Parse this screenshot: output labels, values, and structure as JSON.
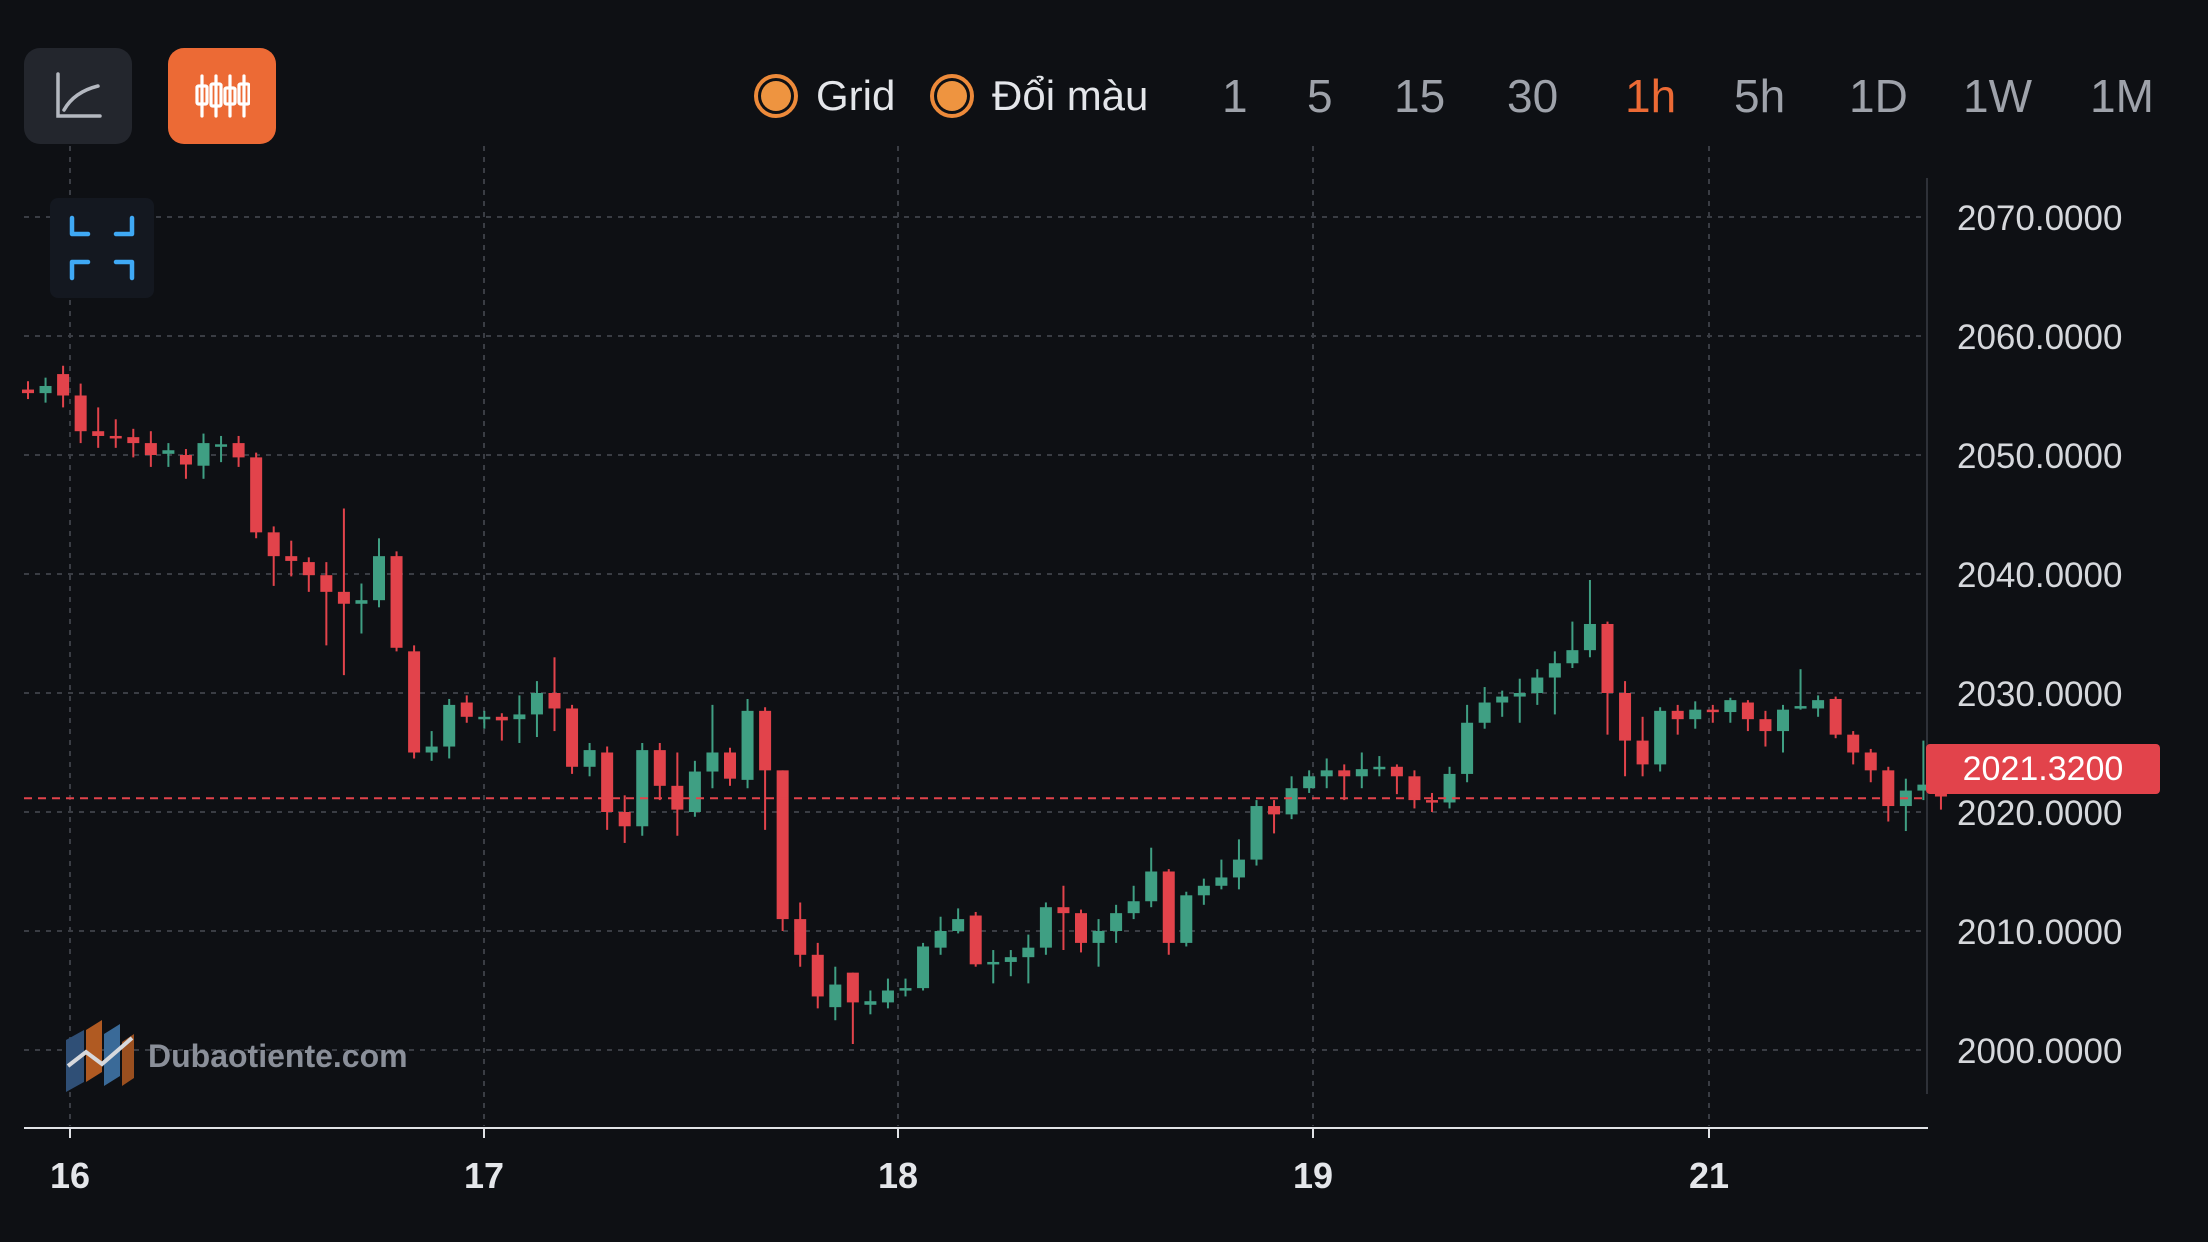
{
  "toolbar": {
    "toggles": [
      {
        "label": "Grid",
        "on": true
      },
      {
        "label": "Đổi màu",
        "on": true
      }
    ],
    "timeframes": [
      "1",
      "5",
      "15",
      "30",
      "1h",
      "5h",
      "1D",
      "1W",
      "1M"
    ],
    "active_timeframe": "1h",
    "chart_modes": [
      "line-chart-icon",
      "candlestick-icon"
    ],
    "active_mode": "candlestick-icon"
  },
  "watermark": {
    "text": "Dubaotiente.com"
  },
  "colors": {
    "background": "#0e1014",
    "up": "#3f9f83",
    "down": "#e2434b",
    "accent": "#ec6a35",
    "grid": "#3a3d44"
  },
  "chart_data": {
    "type": "candlestick",
    "grid": true,
    "ylim": [
      1994,
      2074
    ],
    "y_ticks": [
      "2070.0000",
      "2060.0000",
      "2050.0000",
      "2040.0000",
      "2030.0000",
      "2020.0000",
      "2010.0000",
      "2000.0000"
    ],
    "x_ticks": [
      "16",
      "17",
      "18",
      "19",
      "21"
    ],
    "current_price": "2021.3200",
    "candles": [
      [
        2055.5,
        2055.2,
        2056.2,
        2054.7
      ],
      [
        2055.2,
        2055.8,
        2056.5,
        2054.4
      ],
      [
        2056.8,
        2055.0,
        2057.5,
        2054.0
      ],
      [
        2055.0,
        2052.0,
        2056.0,
        2051.0
      ],
      [
        2052.0,
        2051.6,
        2054.0,
        2050.6
      ],
      [
        2051.6,
        2051.4,
        2053.0,
        2050.6
      ],
      [
        2051.5,
        2051.0,
        2052.2,
        2049.8
      ],
      [
        2051.0,
        2050.0,
        2052.0,
        2049.0
      ],
      [
        2050.1,
        2050.4,
        2051.0,
        2049.0
      ],
      [
        2050.0,
        2049.2,
        2050.5,
        2048.0
      ],
      [
        2049.1,
        2051.0,
        2051.8,
        2048.0
      ],
      [
        2050.8,
        2050.9,
        2051.6,
        2049.4
      ],
      [
        2051.0,
        2049.8,
        2051.6,
        2049.0
      ],
      [
        2049.8,
        2043.5,
        2050.2,
        2043.0
      ],
      [
        2043.5,
        2041.5,
        2044.0,
        2039.0
      ],
      [
        2041.5,
        2041.1,
        2042.8,
        2039.8
      ],
      [
        2041.0,
        2039.9,
        2041.4,
        2038.5
      ],
      [
        2039.9,
        2038.5,
        2041.0,
        2034.0
      ],
      [
        2038.5,
        2037.5,
        2045.5,
        2031.5
      ],
      [
        2037.5,
        2037.8,
        2039.2,
        2035.0
      ],
      [
        2037.8,
        2041.5,
        2043.0,
        2037.2
      ],
      [
        2041.5,
        2033.8,
        2041.9,
        2033.5
      ],
      [
        2033.5,
        2025.0,
        2034.0,
        2024.5
      ],
      [
        2025.0,
        2025.5,
        2026.8,
        2024.3
      ],
      [
        2025.5,
        2029.0,
        2029.5,
        2024.5
      ],
      [
        2029.2,
        2028.0,
        2029.8,
        2027.5
      ],
      [
        2028.0,
        2028.0,
        2028.5,
        2027.0
      ],
      [
        2028.0,
        2027.7,
        2028.3,
        2026.0
      ],
      [
        2027.8,
        2028.2,
        2029.8,
        2025.8
      ],
      [
        2028.2,
        2030.0,
        2031.0,
        2026.3
      ],
      [
        2030.0,
        2028.7,
        2033.0,
        2026.8
      ],
      [
        2028.7,
        2023.8,
        2029.0,
        2023.2
      ],
      [
        2023.8,
        2025.2,
        2025.8,
        2023.0
      ],
      [
        2025.0,
        2020.0,
        2025.5,
        2018.5
      ],
      [
        2020.0,
        2018.8,
        2021.4,
        2017.4
      ],
      [
        2018.8,
        2025.2,
        2025.8,
        2018.0
      ],
      [
        2025.2,
        2022.2,
        2025.8,
        2021.0
      ],
      [
        2022.2,
        2020.2,
        2025.0,
        2018.0
      ],
      [
        2020.0,
        2023.4,
        2024.3,
        2019.6
      ],
      [
        2023.4,
        2025.0,
        2029.0,
        2022.0
      ],
      [
        2025.0,
        2022.8,
        2025.4,
        2022.2
      ],
      [
        2022.7,
        2028.5,
        2029.5,
        2022.0
      ],
      [
        2028.5,
        2023.5,
        2028.8,
        2018.5
      ],
      [
        2023.5,
        2011.0,
        2023.5,
        2010.0
      ],
      [
        2011.0,
        2008.0,
        2012.4,
        2007.0
      ],
      [
        2008.0,
        2004.5,
        2009.0,
        2003.5
      ],
      [
        2003.6,
        2005.5,
        2007.0,
        2002.5
      ],
      [
        2006.5,
        2004.0,
        2006.5,
        2000.5
      ],
      [
        2003.8,
        2004.1,
        2005.0,
        2003.0
      ],
      [
        2004.0,
        2005.0,
        2006.0,
        2003.5
      ],
      [
        2005.0,
        2005.2,
        2006.0,
        2004.5
      ],
      [
        2005.2,
        2008.7,
        2009.0,
        2005.0
      ],
      [
        2008.6,
        2010.0,
        2011.2,
        2008.0
      ],
      [
        2010.0,
        2011.0,
        2011.9,
        2009.8
      ],
      [
        2011.3,
        2007.2,
        2011.6,
        2007.0
      ],
      [
        2007.2,
        2007.4,
        2008.4,
        2005.6
      ],
      [
        2007.4,
        2007.8,
        2008.4,
        2006.2
      ],
      [
        2007.8,
        2008.6,
        2009.7,
        2005.6
      ],
      [
        2008.6,
        2012.0,
        2012.4,
        2008.0
      ],
      [
        2012.0,
        2011.5,
        2013.8,
        2008.4
      ],
      [
        2011.5,
        2009.0,
        2011.8,
        2008.2
      ],
      [
        2009.0,
        2010.0,
        2011.0,
        2007.0
      ],
      [
        2010.0,
        2011.5,
        2012.2,
        2009.0
      ],
      [
        2011.5,
        2012.5,
        2013.8,
        2011.0
      ],
      [
        2012.5,
        2015.0,
        2017.0,
        2012.0
      ],
      [
        2015.0,
        2009.0,
        2015.2,
        2008.0
      ],
      [
        2009.0,
        2013.0,
        2013.3,
        2008.7
      ],
      [
        2013.0,
        2013.8,
        2014.4,
        2012.2
      ],
      [
        2013.8,
        2014.5,
        2016.0,
        2013.5
      ],
      [
        2014.5,
        2016.0,
        2017.7,
        2013.5
      ],
      [
        2016.0,
        2020.5,
        2021.0,
        2015.5
      ],
      [
        2020.5,
        2019.8,
        2021.0,
        2018.2
      ],
      [
        2019.8,
        2022.0,
        2023.0,
        2019.4
      ],
      [
        2022.0,
        2023.0,
        2023.5,
        2021.6
      ],
      [
        2023.0,
        2023.5,
        2024.5,
        2022.0
      ],
      [
        2023.5,
        2023.0,
        2024.0,
        2021.0
      ],
      [
        2023.0,
        2023.6,
        2025.0,
        2022.0
      ],
      [
        2023.6,
        2023.8,
        2024.7,
        2023.0
      ],
      [
        2023.8,
        2023.0,
        2024.0,
        2021.5
      ],
      [
        2023.0,
        2021.0,
        2023.5,
        2020.3
      ],
      [
        2021.0,
        2020.8,
        2021.6,
        2020.0
      ],
      [
        2020.8,
        2023.2,
        2023.8,
        2020.3
      ],
      [
        2023.2,
        2027.5,
        2029.0,
        2022.5
      ],
      [
        2027.5,
        2029.2,
        2030.5,
        2027.0
      ],
      [
        2029.2,
        2029.7,
        2030.2,
        2028.0
      ],
      [
        2029.7,
        2030.0,
        2031.2,
        2027.5
      ],
      [
        2030.0,
        2031.3,
        2032.0,
        2029.0
      ],
      [
        2031.3,
        2032.5,
        2033.5,
        2028.2
      ],
      [
        2032.5,
        2033.6,
        2036.0,
        2032.1
      ],
      [
        2033.6,
        2035.8,
        2039.5,
        2033.0
      ],
      [
        2035.8,
        2030.0,
        2036.0,
        2026.5
      ],
      [
        2030.0,
        2026.0,
        2031.0,
        2023.0
      ],
      [
        2026.0,
        2024.0,
        2028.0,
        2023.0
      ],
      [
        2024.0,
        2028.5,
        2028.8,
        2023.4
      ],
      [
        2028.5,
        2027.8,
        2029.0,
        2026.5
      ],
      [
        2027.8,
        2028.6,
        2029.3,
        2027.0
      ],
      [
        2028.6,
        2028.4,
        2029.0,
        2027.5
      ],
      [
        2028.4,
        2029.4,
        2029.6,
        2027.5
      ],
      [
        2029.2,
        2027.8,
        2029.4,
        2026.8
      ],
      [
        2027.8,
        2026.8,
        2028.5,
        2025.5
      ],
      [
        2026.8,
        2028.6,
        2029.0,
        2025.0
      ],
      [
        2028.8,
        2028.9,
        2032.0,
        2028.6
      ],
      [
        2028.7,
        2029.4,
        2029.8,
        2028.0
      ],
      [
        2029.5,
        2026.5,
        2029.7,
        2026.2
      ],
      [
        2026.5,
        2025.0,
        2026.8,
        2024.0
      ],
      [
        2025.0,
        2023.5,
        2025.3,
        2022.5
      ],
      [
        2023.5,
        2020.5,
        2023.8,
        2019.2
      ],
      [
        2020.5,
        2021.8,
        2022.8,
        2018.4
      ],
      [
        2021.8,
        2022.3,
        2026.0,
        2021.0
      ],
      [
        2022.3,
        2021.3,
        2023.0,
        2020.2
      ]
    ]
  }
}
